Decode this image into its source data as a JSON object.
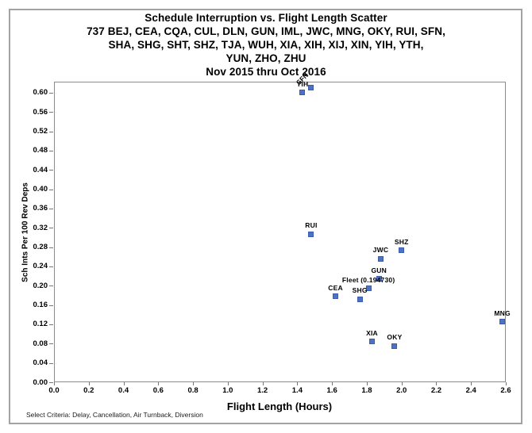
{
  "chart_data": {
    "type": "scatter",
    "title_lines": [
      "Schedule Interruption vs. Flight Length Scatter",
      "737 BEJ, CEA, CQA, CUL, DLN, GUN, IML, JWC, MNG, OKY, RUI, SFN,",
      "SHA, SHG, SHT, SHZ, TJA, WUH, XIA, XIH, XIJ, XIN, YIH, YTH,",
      "YUN, ZHO, ZHU",
      "Nov 2015 thru Oct 2016"
    ],
    "xlabel": "Flight Length (Hours)",
    "ylabel": "Sch Ints Per 100 Rev Deps",
    "footnote": "Select Criteria: Delay, Cancellation, Air Turnback, Diversion",
    "xlim": [
      0,
      2.6
    ],
    "ylim": [
      0,
      0.623
    ],
    "x_ticks": [
      "0.0",
      "0.2",
      "0.4",
      "0.6",
      "0.8",
      "1.0",
      "1.2",
      "1.4",
      "1.6",
      "1.8",
      "2.0",
      "2.2",
      "2.4",
      "2.6"
    ],
    "y_ticks": [
      "0.00",
      "0.04",
      "0.08",
      "0.12",
      "0.16",
      "0.20",
      "0.24",
      "0.28",
      "0.32",
      "0.36",
      "0.40",
      "0.44",
      "0.48",
      "0.52",
      "0.56",
      "0.60"
    ],
    "legend": "none",
    "grid": "off",
    "marker_shape": "square",
    "marker_color": "#4c72c4",
    "marker_border_color": "#3c5cae",
    "points": [
      {
        "label": "YIH",
        "x": 1.43,
        "y": 0.6
      },
      {
        "label": "SFN",
        "x": 1.48,
        "y": 0.61,
        "label_rotation": -45
      },
      {
        "label": "RUI",
        "x": 1.48,
        "y": 0.307
      },
      {
        "label": "SHZ",
        "x": 2.0,
        "y": 0.273
      },
      {
        "label": "JWC",
        "x": 1.88,
        "y": 0.256
      },
      {
        "label": "GUN",
        "x": 1.87,
        "y": 0.214
      },
      {
        "label": "Fleet (0.194730)",
        "x": 1.81,
        "y": 0.1947
      },
      {
        "label": "CEA",
        "x": 1.62,
        "y": 0.178
      },
      {
        "label": "SHG",
        "x": 1.76,
        "y": 0.172
      },
      {
        "label": "MNG",
        "x": 2.58,
        "y": 0.125
      },
      {
        "label": "XIA",
        "x": 1.83,
        "y": 0.084
      },
      {
        "label": "OKY",
        "x": 1.96,
        "y": 0.075
      }
    ]
  }
}
